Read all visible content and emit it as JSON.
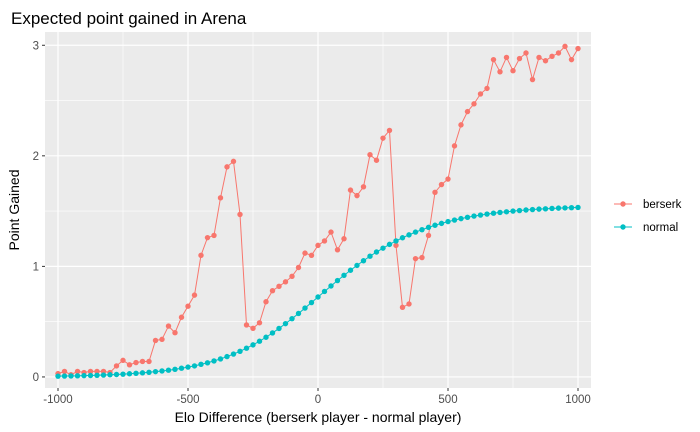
{
  "chart_data": {
    "type": "line",
    "title": "Expected point gained in Arena",
    "xlabel": "Elo Difference (berserk player - normal player)",
    "ylabel": "Point Gained",
    "xlim": [
      -1050,
      1050
    ],
    "ylim": [
      -0.1,
      3.12
    ],
    "xticks": [
      -1000,
      -500,
      0,
      500,
      1000
    ],
    "yticks": [
      0,
      1,
      2,
      3
    ],
    "grid": true,
    "legend_position": "right",
    "x": [
      -1000,
      -975,
      -950,
      -925,
      -900,
      -875,
      -850,
      -825,
      -800,
      -775,
      -750,
      -725,
      -700,
      -675,
      -650,
      -625,
      -600,
      -575,
      -550,
      -525,
      -500,
      -475,
      -450,
      -425,
      -400,
      -375,
      -350,
      -325,
      -300,
      -275,
      -250,
      -225,
      -200,
      -175,
      -150,
      -125,
      -100,
      -75,
      -50,
      -25,
      0,
      25,
      50,
      75,
      100,
      125,
      150,
      175,
      200,
      225,
      250,
      275,
      300,
      325,
      350,
      375,
      400,
      425,
      450,
      475,
      500,
      525,
      550,
      575,
      600,
      625,
      650,
      675,
      700,
      725,
      750,
      775,
      800,
      825,
      850,
      875,
      900,
      925,
      950,
      975,
      1000
    ],
    "series": [
      {
        "name": "berserk",
        "color": "#F8766D",
        "values": [
          0.03,
          0.05,
          0.02,
          0.05,
          0.04,
          0.05,
          0.05,
          0.05,
          0.04,
          0.1,
          0.15,
          0.11,
          0.13,
          0.14,
          0.14,
          0.33,
          0.34,
          0.46,
          0.4,
          0.54,
          0.64,
          0.74,
          1.1,
          1.26,
          1.28,
          1.62,
          1.9,
          1.95,
          1.47,
          0.47,
          0.44,
          0.49,
          0.68,
          0.78,
          0.82,
          0.86,
          0.91,
          0.99,
          1.12,
          1.1,
          1.19,
          1.23,
          1.31,
          1.15,
          1.25,
          1.69,
          1.64,
          1.72,
          2.01,
          1.96,
          2.16,
          2.23,
          1.19,
          0.63,
          0.66,
          1.07,
          1.08,
          1.28,
          1.67,
          1.74,
          1.79,
          2.09,
          2.28,
          2.4,
          2.47,
          2.56,
          2.61,
          2.87,
          2.76,
          2.89,
          2.77,
          2.88,
          2.93,
          2.69,
          2.89,
          2.86,
          2.9,
          2.93,
          2.99,
          2.87,
          2.97
        ]
      },
      {
        "name": "normal",
        "color": "#00BFC4",
        "values": [
          0.007,
          0.008,
          0.009,
          0.01,
          0.012,
          0.013,
          0.015,
          0.017,
          0.02,
          0.022,
          0.025,
          0.029,
          0.033,
          0.037,
          0.042,
          0.048,
          0.054,
          0.061,
          0.069,
          0.079,
          0.089,
          0.1,
          0.114,
          0.128,
          0.145,
          0.163,
          0.184,
          0.207,
          0.232,
          0.26,
          0.29,
          0.323,
          0.359,
          0.398,
          0.439,
          0.482,
          0.527,
          0.574,
          0.623,
          0.673,
          0.723,
          0.773,
          0.823,
          0.872,
          0.919,
          0.965,
          1.009,
          1.051,
          1.092,
          1.13,
          1.165,
          1.199,
          1.23,
          1.259,
          1.285,
          1.31,
          1.332,
          1.353,
          1.372,
          1.389,
          1.405,
          1.419,
          1.432,
          1.444,
          1.455,
          1.464,
          1.473,
          1.481,
          1.488,
          1.494,
          1.5,
          1.505,
          1.51,
          1.514,
          1.518,
          1.521,
          1.524,
          1.527,
          1.529,
          1.531,
          1.533
        ]
      }
    ]
  }
}
